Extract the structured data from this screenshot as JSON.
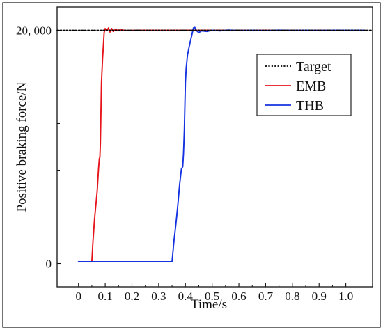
{
  "chart_data": {
    "type": "line",
    "xlabel": "Time/s",
    "ylabel": "Positive braking force/N",
    "xlim": [
      -0.08,
      1.1
    ],
    "ylim": [
      -2000,
      22000
    ],
    "x_ticks": [
      0,
      0.1,
      0.2,
      0.3,
      0.4,
      0.5,
      0.6,
      0.7,
      0.8,
      0.9,
      1.0
    ],
    "x_tick_labels": [
      "0",
      "0.1",
      "0.2",
      "0.3",
      "0.4",
      "0.5",
      "0.6",
      "0.7",
      "0.8",
      "0.9",
      "1.0"
    ],
    "y_ticks": [
      0,
      20000
    ],
    "y_tick_labels": [
      "0",
      "20, 000"
    ],
    "legend": {
      "placement": "top-right",
      "entries": [
        "Target",
        "EMB",
        "THB"
      ]
    },
    "series": [
      {
        "name": "Target",
        "color": "#000000",
        "style": "dotted",
        "x": [
          -0.08,
          1.1
        ],
        "y": [
          20000,
          20000
        ]
      },
      {
        "name": "EMB",
        "color": "#e8141b",
        "style": "solid",
        "x": [
          0.0,
          0.05,
          0.054,
          0.06,
          0.07,
          0.075,
          0.078,
          0.08,
          0.082,
          0.086,
          0.09,
          0.094,
          0.096,
          0.1,
          0.106,
          0.112,
          0.118,
          0.124,
          0.13,
          0.138,
          0.146,
          0.16,
          0.18,
          0.22,
          0.28,
          0.34,
          0.38,
          0.4,
          0.42,
          0.45,
          0.5,
          0.6,
          0.7,
          0.8,
          0.9,
          1.0,
          1.07
        ],
        "y": [
          150,
          150,
          1800,
          3800,
          6200,
          8100,
          9000,
          9100,
          10300,
          15500,
          17500,
          19000,
          19800,
          20150,
          19950,
          20200,
          19850,
          20150,
          19900,
          20100,
          20000,
          20030,
          19980,
          20000,
          20000,
          20000,
          20000,
          20000,
          20000,
          20000,
          20000,
          20000,
          20000,
          20000,
          20000,
          20000,
          20000
        ]
      },
      {
        "name": "THB",
        "color": "#1432e0",
        "style": "solid",
        "x": [
          0.0,
          0.35,
          0.357,
          0.365,
          0.372,
          0.378,
          0.385,
          0.39,
          0.393,
          0.396,
          0.398,
          0.4,
          0.403,
          0.408,
          0.415,
          0.423,
          0.43,
          0.435,
          0.44,
          0.45,
          0.46,
          0.48,
          0.5,
          0.53,
          0.56,
          0.6,
          0.65,
          0.7,
          0.75,
          0.8,
          0.85,
          0.9,
          0.95,
          1.0,
          1.07
        ],
        "y": [
          150,
          150,
          1900,
          3500,
          5100,
          6700,
          8100,
          8300,
          9500,
          11500,
          13500,
          15500,
          16800,
          17900,
          18700,
          19500,
          20200,
          20250,
          20000,
          19800,
          19950,
          19900,
          20000,
          19950,
          20020,
          19980,
          20000,
          19970,
          20010,
          19990,
          20000,
          19990,
          20000,
          20000,
          20000
        ]
      }
    ]
  }
}
